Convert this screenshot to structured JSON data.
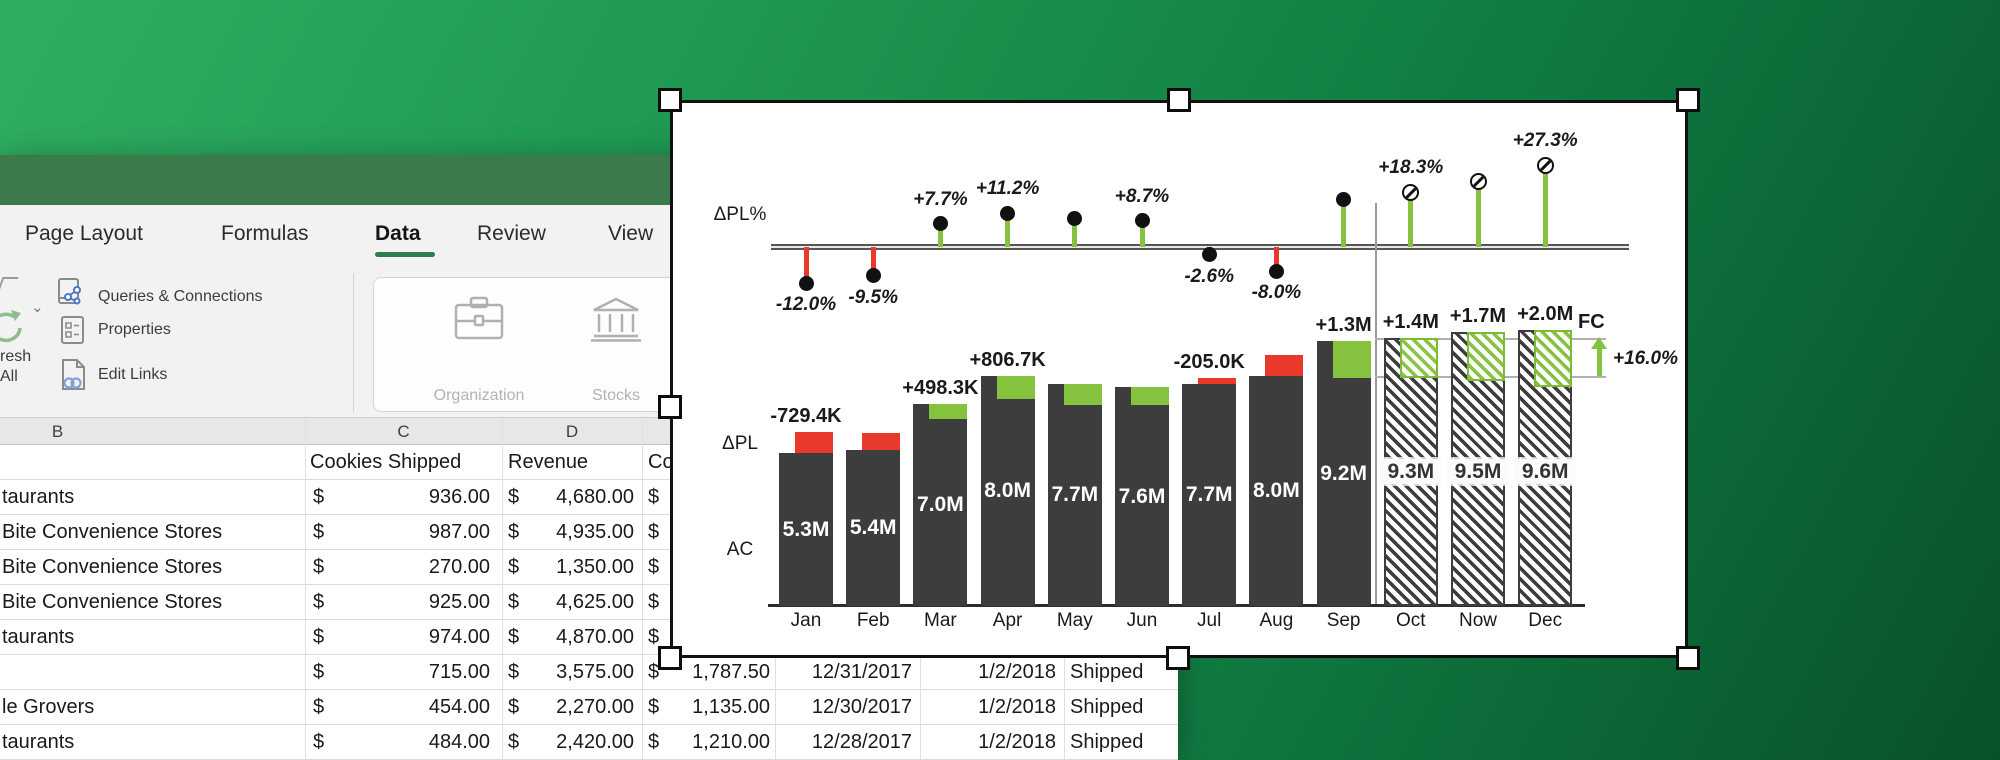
{
  "window": {
    "tabs": [
      "Page Layout",
      "Formulas",
      "Data",
      "Review",
      "View"
    ],
    "active_tab": "Data",
    "ribbon": {
      "refresh": {
        "line1": "resh",
        "line2": "All"
      },
      "buttons": {
        "queries": "Queries & Connections",
        "properties": "Properties",
        "edit_links": "Edit Links"
      },
      "data_types_group": {
        "organization": "Organization",
        "stocks": "Stocks"
      }
    },
    "sheet": {
      "currency_symbol": "$",
      "column_letters": {
        "b": "B",
        "c": "C",
        "d": "D"
      },
      "field_headers": {
        "c": "Cookies Shipped",
        "d": "Revenue",
        "e": "Co"
      },
      "rows": [
        {
          "b": "taurants",
          "c": "936.00",
          "d": "4,680.00"
        },
        {
          "b": "Bite Convenience Stores",
          "c": "987.00",
          "d": "4,935.00"
        },
        {
          "b": "Bite Convenience Stores",
          "c": "270.00",
          "d": "1,350.00"
        },
        {
          "b": "Bite Convenience Stores",
          "c": "925.00",
          "d": "4,625.00"
        },
        {
          "b": "taurants",
          "c": "974.00",
          "d": "4,870.00"
        },
        {
          "b": "",
          "c": "715.00",
          "d": "3,575.00",
          "e": "1,787.50",
          "f": "12/31/2017",
          "g": "1/2/2018",
          "h": "Shipped"
        },
        {
          "b": "le Grovers",
          "c": "454.00",
          "d": "2,270.00",
          "e": "1,135.00",
          "f": "12/30/2017",
          "g": "1/2/2018",
          "h": "Shipped"
        },
        {
          "b": "taurants",
          "c": "484.00",
          "d": "2,420.00",
          "e": "1,210.00",
          "f": "12/28/2017",
          "g": "1/2/2018",
          "h": "Shipped"
        }
      ]
    }
  },
  "chart_data": {
    "type": "bar",
    "title": "",
    "categories": [
      "Jan",
      "Feb",
      "Mar",
      "Apr",
      "May",
      "Jun",
      "Jul",
      "Aug",
      "Sep",
      "Oct",
      "Now",
      "Dec"
    ],
    "series": [
      {
        "name": "AC",
        "unit": "M",
        "values": [
          5.3,
          5.4,
          7.0,
          8.0,
          7.7,
          7.6,
          7.7,
          8.0,
          9.2,
          null,
          null,
          null
        ]
      },
      {
        "name": "FC",
        "unit": "M",
        "values": [
          null,
          null,
          null,
          null,
          null,
          null,
          null,
          null,
          null,
          9.3,
          9.5,
          9.6
        ]
      },
      {
        "name": "ΔPL",
        "unit": "M",
        "values": [
          -0.7294,
          -0.6,
          0.4983,
          0.8067,
          0.72,
          0.62,
          -0.205,
          -0.7,
          1.3,
          1.4,
          1.7,
          2.0
        ],
        "labels": [
          "-729.4K",
          null,
          "+498.3K",
          "+806.7K",
          null,
          null,
          "-205.0K",
          null,
          "+1.3M",
          "+1.4M",
          "+1.7M",
          "+2.0M"
        ]
      },
      {
        "name": "ΔPL%",
        "unit": "%",
        "values": [
          -12.0,
          -9.5,
          7.7,
          11.2,
          9.5,
          8.7,
          -2.6,
          -8.0,
          15.7,
          18.3,
          21.8,
          27.3
        ],
        "labels": [
          "-12.0%",
          "-9.5%",
          "+7.7%",
          "+11.2%",
          null,
          "+8.7%",
          "-2.6%",
          "-8.0%",
          null,
          "+18.3%",
          null,
          "+27.3%"
        ]
      }
    ],
    "bar_labels": [
      "5.3M",
      "5.4M",
      "7.0M",
      "8.0M",
      "7.7M",
      "7.6M",
      "7.7M",
      "8.0M",
      "9.2M",
      "9.3M",
      "9.5M",
      "9.6M"
    ],
    "axis_labels": {
      "top": "ΔPL%",
      "mid": "ΔPL",
      "bottom": "AC",
      "forecast": "FC"
    },
    "annotation": "+16.0%",
    "forecast_start_index": 9,
    "legend_position": "none",
    "grid": false,
    "colors": {
      "actual_bar": "#3d3d3d",
      "positive": "#85c23d",
      "negative": "#e8392b"
    }
  }
}
